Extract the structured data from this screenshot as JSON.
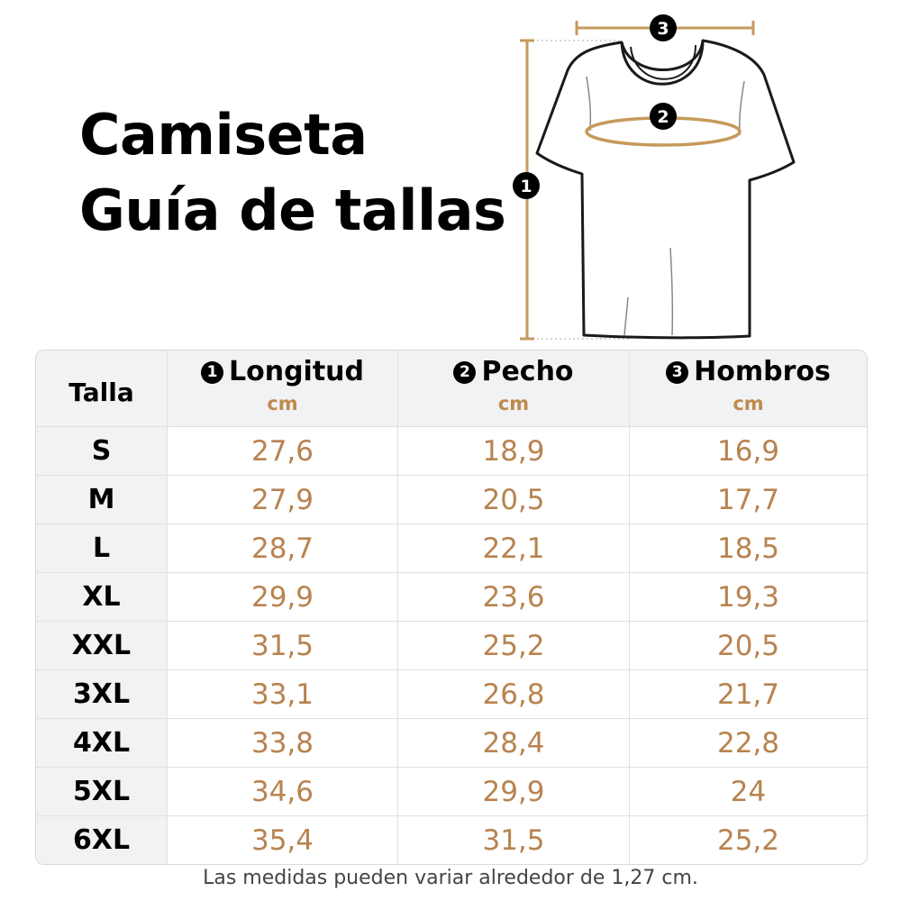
{
  "title": {
    "line1": "Camiseta",
    "line2": "Guía de tallas"
  },
  "colors": {
    "accent": "#c08a4e",
    "value_text": "#b8834f",
    "header_bg": "#f1f2f3"
  },
  "diagram": {
    "markers": {
      "length": "1",
      "chest": "2",
      "shoulders": "3"
    }
  },
  "table": {
    "talla_header": "Talla",
    "columns": [
      {
        "number": "1",
        "label": "Longitud",
        "unit": "cm"
      },
      {
        "number": "2",
        "label": "Pecho",
        "unit": "cm"
      },
      {
        "number": "3",
        "label": "Hombros",
        "unit": "cm"
      }
    ],
    "rows": [
      {
        "size": "S",
        "values": [
          "27,6",
          "18,9",
          "16,9"
        ]
      },
      {
        "size": "M",
        "values": [
          "27,9",
          "20,5",
          "17,7"
        ]
      },
      {
        "size": "L",
        "values": [
          "28,7",
          "22,1",
          "18,5"
        ]
      },
      {
        "size": "XL",
        "values": [
          "29,9",
          "23,6",
          "19,3"
        ]
      },
      {
        "size": "XXL",
        "values": [
          "31,5",
          "25,2",
          "20,5"
        ]
      },
      {
        "size": "3XL",
        "values": [
          "33,1",
          "26,8",
          "21,7"
        ]
      },
      {
        "size": "4XL",
        "values": [
          "33,8",
          "28,4",
          "22,8"
        ]
      },
      {
        "size": "5XL",
        "values": [
          "34,6",
          "29,9",
          "24"
        ]
      },
      {
        "size": "6XL",
        "values": [
          "35,4",
          "31,5",
          "25,2"
        ]
      }
    ]
  },
  "note": "Las medidas pueden variar alrededor de 1,27 cm."
}
